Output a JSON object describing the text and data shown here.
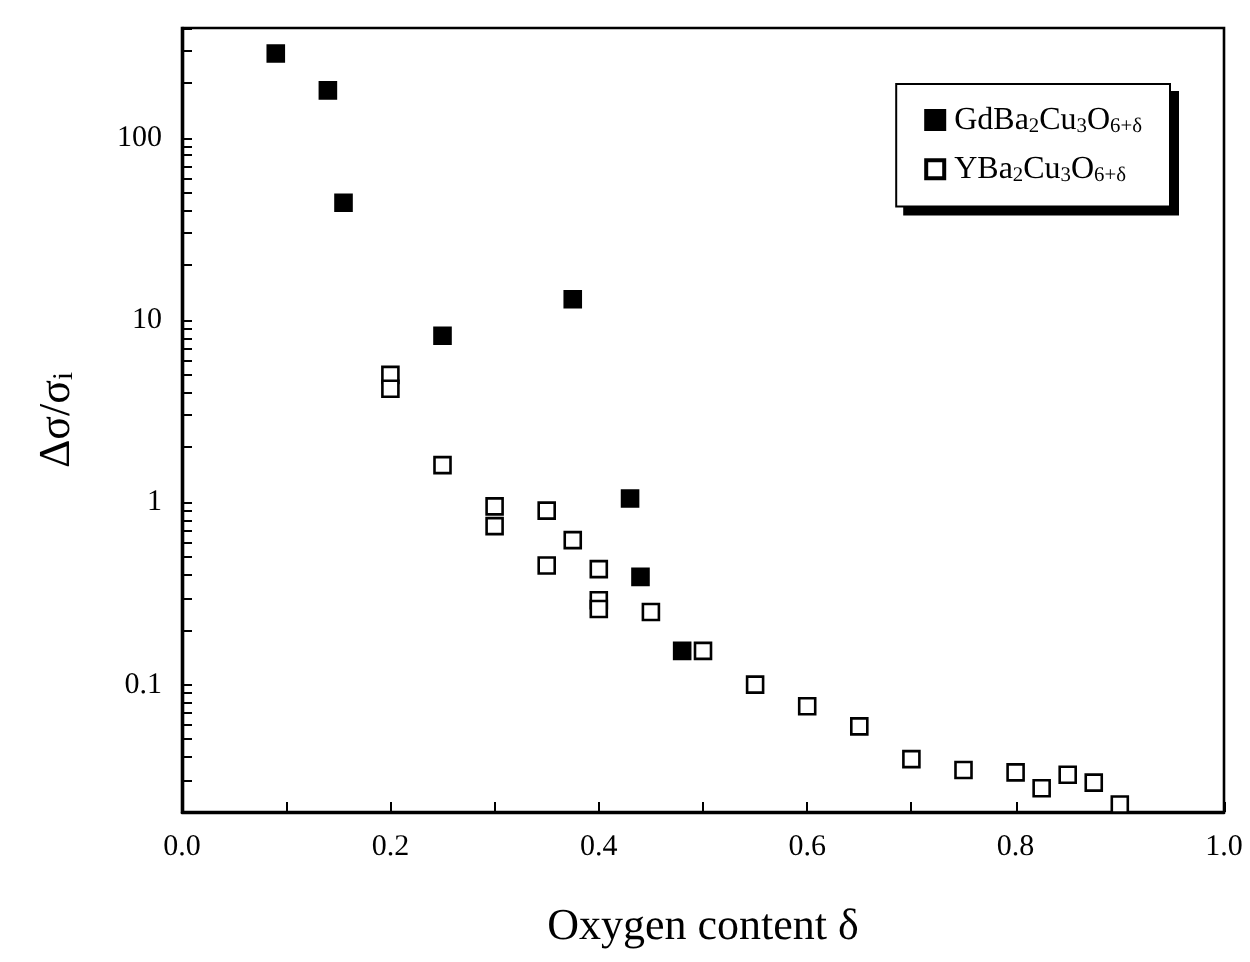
{
  "chart_data": {
    "type": "scatter",
    "xlabel": "Oxygen content δ",
    "ylabel": "Δσ/σ$_{i}$",
    "xlim": [
      0,
      1
    ],
    "xticks": [
      {
        "value": 0,
        "label": "0.0"
      },
      {
        "value": 0.1,
        "label": null
      },
      {
        "value": 0.2,
        "label": "0.2"
      },
      {
        "value": 0.3,
        "label": null
      },
      {
        "value": 0.4,
        "label": "0.4"
      },
      {
        "value": 0.5,
        "label": null
      },
      {
        "value": 0.6,
        "label": "0.6"
      },
      {
        "value": 0.7,
        "label": null
      },
      {
        "value": 0.8,
        "label": "0.8"
      },
      {
        "value": 0.9,
        "label": null
      },
      {
        "value": 1,
        "label": "1.0"
      }
    ],
    "ylim": [
      0.02,
      400
    ],
    "log": "y",
    "yticks": [
      {
        "value": 0.02,
        "label": null
      },
      {
        "value": 0.03,
        "label": null
      },
      {
        "value": 0.04,
        "label": null
      },
      {
        "value": 0.05,
        "label": null
      },
      {
        "value": 0.06,
        "label": null
      },
      {
        "value": 0.07,
        "label": null
      },
      {
        "value": 0.08,
        "label": null
      },
      {
        "value": 0.09,
        "label": null
      },
      0.1,
      {
        "value": 0.2,
        "label": null
      },
      {
        "value": 0.3,
        "label": null
      },
      {
        "value": 0.4,
        "label": null
      },
      {
        "value": 0.5,
        "label": null
      },
      {
        "value": 0.6,
        "label": null
      },
      {
        "value": 0.7,
        "label": null
      },
      {
        "value": 0.8,
        "label": null
      },
      {
        "value": 0.9,
        "label": null
      },
      1,
      {
        "value": 2,
        "label": null
      },
      {
        "value": 3,
        "label": null
      },
      {
        "value": 4,
        "label": null
      },
      {
        "value": 5,
        "label": null
      },
      {
        "value": 6,
        "label": null
      },
      {
        "value": 7,
        "label": null
      },
      {
        "value": 8,
        "label": null
      },
      {
        "value": 9,
        "label": null
      },
      10,
      {
        "value": 20,
        "label": null
      },
      {
        "value": 30,
        "label": null
      },
      {
        "value": 40,
        "label": null
      },
      {
        "value": 50,
        "label": null
      },
      {
        "value": 60,
        "label": null
      },
      {
        "value": 70,
        "label": null
      },
      {
        "value": 80,
        "label": null
      },
      {
        "value": 90,
        "label": null
      },
      100,
      {
        "value": 200,
        "label": null
      },
      {
        "value": 300,
        "label": null
      },
      {
        "value": 400,
        "label": null
      }
    ],
    "grid": false,
    "legend": "top right",
    "marker": "square",
    "series": [
      {
        "name": "GdBa$_{2}$Cu$_{3}$O$_{6+δ}$",
        "color": "#000000",
        "x": [
          0.09,
          0.14,
          0.155,
          0.25,
          0.375,
          0.43,
          0.44,
          0.48
        ],
        "values": [
          290,
          182,
          44,
          8.2,
          13,
          1.05,
          0.39,
          0.153
        ]
      },
      {
        "name": "YBa$_{2}$Cu$_{3}$O$_{6+δ}$",
        "color": "#ffffff",
        "x": [
          0.2,
          0.2,
          0.25,
          0.3,
          0.3,
          0.35,
          0.35,
          0.375,
          0.4,
          0.4,
          0.4,
          0.45,
          0.5,
          0.55,
          0.6,
          0.65,
          0.7,
          0.75,
          0.8,
          0.825,
          0.85,
          0.875,
          0.9
        ],
        "values": [
          5.0,
          4.2,
          1.6,
          0.95,
          0.74,
          0.9,
          0.45,
          0.62,
          0.43,
          0.29,
          0.26,
          0.25,
          0.153,
          0.1,
          0.076,
          0.059,
          0.039,
          0.034,
          0.033,
          0.027,
          0.032,
          0.029,
          0.022
        ]
      }
    ]
  }
}
